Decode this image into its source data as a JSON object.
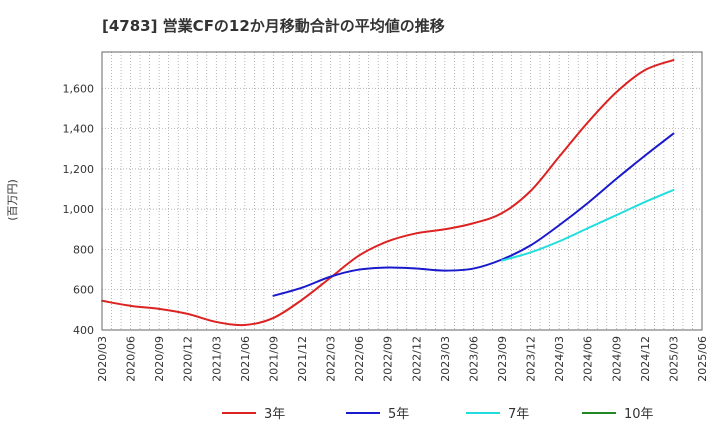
{
  "chart_data": {
    "type": "line",
    "title": "[4783]  営業CFの12か月移動合計の平均値の推移",
    "ylabel": "(百万円)",
    "xlabel": "",
    "ylim": [
      400,
      1780
    ],
    "yticks": [
      400,
      600,
      800,
      1000,
      1200,
      1400,
      1600
    ],
    "ytick_labels": [
      "400",
      "600",
      "800",
      "1,000",
      "1,200",
      "1,400",
      "1,600"
    ],
    "x_start": "2020/03",
    "x_end": "2025/06",
    "x_ticks": [
      "2020/03",
      "2020/06",
      "2020/09",
      "2020/12",
      "2021/03",
      "2021/06",
      "2021/09",
      "2021/12",
      "2022/03",
      "2022/06",
      "2022/09",
      "2022/12",
      "2023/03",
      "2023/06",
      "2023/09",
      "2023/12",
      "2024/03",
      "2024/06",
      "2024/09",
      "2024/12",
      "2025/03",
      "2025/06"
    ],
    "grid": true,
    "legend_position": "bottom",
    "series": [
      {
        "name": "3年",
        "color": "#dd2222",
        "x": [
          "2020/03",
          "2020/06",
          "2020/09",
          "2020/12",
          "2021/03",
          "2021/06",
          "2021/09",
          "2021/12",
          "2022/03",
          "2022/06",
          "2022/09",
          "2022/12",
          "2023/03",
          "2023/06",
          "2023/09",
          "2023/12",
          "2024/03",
          "2024/06",
          "2024/09",
          "2024/12",
          "2025/03"
        ],
        "values": [
          545,
          520,
          505,
          480,
          440,
          425,
          460,
          550,
          660,
          770,
          840,
          880,
          900,
          930,
          980,
          1090,
          1260,
          1430,
          1580,
          1690,
          1740
        ]
      },
      {
        "name": "5年",
        "color": "#1a1acc",
        "x": [
          "2021/09",
          "2021/12",
          "2022/03",
          "2022/06",
          "2022/09",
          "2022/12",
          "2023/03",
          "2023/06",
          "2023/09",
          "2023/12",
          "2024/03",
          "2024/06",
          "2024/09",
          "2024/12",
          "2025/03"
        ],
        "values": [
          570,
          610,
          665,
          700,
          710,
          705,
          695,
          705,
          750,
          820,
          920,
          1030,
          1150,
          1265,
          1375
        ]
      },
      {
        "name": "7年",
        "color": "#22dddd",
        "x": [
          "2023/09",
          "2023/12",
          "2024/03",
          "2024/06",
          "2024/09",
          "2024/12",
          "2025/03"
        ],
        "values": [
          745,
          785,
          840,
          905,
          970,
          1035,
          1095
        ]
      },
      {
        "name": "10年",
        "color": "#228822",
        "x": [],
        "values": []
      }
    ]
  }
}
